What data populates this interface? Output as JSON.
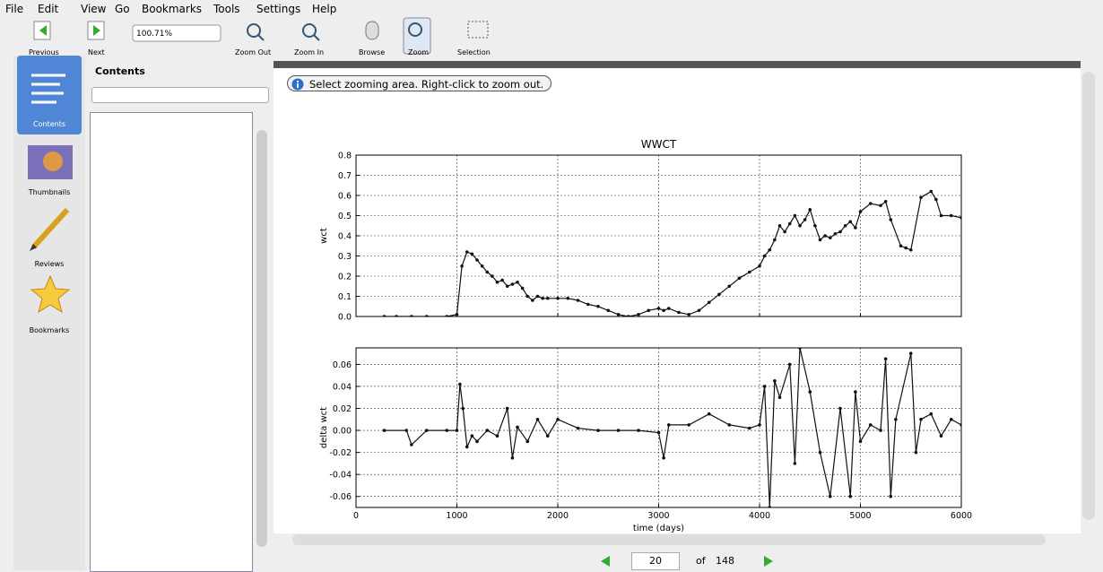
{
  "menu": [
    "File",
    "Edit",
    "View",
    "Go",
    "Bookmarks",
    "Tools",
    "Settings",
    "Help"
  ],
  "toolbar": {
    "previous": "Previous",
    "next": "Next",
    "zoom_value": "100.71%",
    "zoom_out": "Zoom Out",
    "zoom_in": "Zoom In",
    "browse": "Browse",
    "zoom": "Zoom",
    "selection": "Selection"
  },
  "sidebar": [
    "Contents",
    "Thumbnails",
    "Reviews",
    "Bookmarks"
  ],
  "panel_title": "Contents",
  "notice": "Select zooming area. Right-click to zoom out.",
  "page": {
    "current": 20,
    "of_label": "of",
    "total": 148
  },
  "chart_data": [
    {
      "type": "line",
      "title": "WWCT",
      "ylabel": "wct",
      "color": "#111111",
      "grid": true,
      "x": [
        280,
        400,
        550,
        700,
        900,
        1000,
        1050,
        1100,
        1150,
        1200,
        1250,
        1300,
        1350,
        1400,
        1450,
        1500,
        1550,
        1600,
        1650,
        1700,
        1750,
        1800,
        1850,
        1900,
        2000,
        2100,
        2200,
        2300,
        2400,
        2500,
        2600,
        2700,
        2800,
        2900,
        3000,
        3050,
        3100,
        3200,
        3300,
        3400,
        3500,
        3600,
        3700,
        3800,
        3900,
        4000,
        4050,
        4100,
        4150,
        4200,
        4250,
        4300,
        4350,
        4400,
        4450,
        4500,
        4550,
        4600,
        4650,
        4700,
        4750,
        4800,
        4850,
        4900,
        4950,
        5000,
        5100,
        5200,
        5250,
        5300,
        5400,
        5450,
        5500,
        5600,
        5700,
        5750,
        5800,
        5900,
        6000
      ],
      "values": [
        0,
        0,
        0,
        0,
        0,
        0.01,
        0.25,
        0.32,
        0.31,
        0.28,
        0.25,
        0.22,
        0.2,
        0.17,
        0.18,
        0.15,
        0.16,
        0.17,
        0.14,
        0.1,
        0.08,
        0.1,
        0.09,
        0.09,
        0.09,
        0.09,
        0.08,
        0.06,
        0.05,
        0.03,
        0.01,
        0,
        0.01,
        0.03,
        0.04,
        0.03,
        0.04,
        0.02,
        0.01,
        0.03,
        0.07,
        0.11,
        0.15,
        0.19,
        0.22,
        0.25,
        0.3,
        0.33,
        0.38,
        0.45,
        0.42,
        0.46,
        0.5,
        0.45,
        0.48,
        0.53,
        0.45,
        0.38,
        0.4,
        0.39,
        0.41,
        0.42,
        0.45,
        0.47,
        0.44,
        0.52,
        0.56,
        0.55,
        0.57,
        0.48,
        0.35,
        0.34,
        0.33,
        0.59,
        0.62,
        0.58,
        0.5,
        0.5,
        0.49
      ],
      "xlim": [
        0,
        6000
      ],
      "xticks": [
        0,
        1000,
        2000,
        3000,
        4000,
        5000,
        6000
      ],
      "ylim": [
        0,
        0.8
      ],
      "yticks": [
        {
          "value": 0,
          "label": "0.0"
        },
        0.1,
        0.2,
        0.3,
        0.4,
        0.5,
        0.6,
        0.7,
        0.8
      ]
    },
    {
      "type": "line",
      "ylabel": "delta wct",
      "xlabel": "time (days)",
      "color": "#111111",
      "grid": true,
      "x": [
        280,
        500,
        550,
        700,
        900,
        1000,
        1030,
        1060,
        1100,
        1150,
        1200,
        1300,
        1400,
        1500,
        1550,
        1600,
        1700,
        1800,
        1900,
        2000,
        2200,
        2400,
        2600,
        2800,
        3000,
        3050,
        3100,
        3300,
        3500,
        3700,
        3900,
        4000,
        4050,
        4100,
        4150,
        4200,
        4300,
        4350,
        4400,
        4500,
        4600,
        4700,
        4800,
        4900,
        4950,
        5000,
        5100,
        5200,
        5250,
        5300,
        5350,
        5500,
        5550,
        5600,
        5700,
        5800,
        5900,
        6000
      ],
      "values": [
        0,
        0,
        -0.013,
        0,
        0,
        0,
        0.042,
        0.02,
        -0.015,
        -0.005,
        -0.01,
        0,
        -0.005,
        0.02,
        -0.025,
        0.003,
        -0.01,
        0.01,
        -0.005,
        0.01,
        0.002,
        0,
        0,
        0,
        -0.002,
        -0.025,
        0.005,
        0.005,
        0.015,
        0.005,
        0.002,
        0.005,
        0.04,
        -0.07,
        0.045,
        0.03,
        0.06,
        -0.03,
        0.075,
        0.035,
        -0.02,
        -0.06,
        0.02,
        -0.06,
        0.035,
        -0.01,
        0.005,
        0,
        0.065,
        -0.06,
        0.01,
        0.07,
        -0.02,
        0.01,
        0.015,
        -0.005,
        0.01,
        0.005
      ],
      "xlim": [
        0,
        6000
      ],
      "xticks": [
        0,
        1000,
        2000,
        3000,
        4000,
        5000,
        6000
      ],
      "ylim": [
        -0.07,
        0.075
      ],
      "yticks": [
        -0.06,
        -0.04,
        -0.02,
        {
          "value": 0,
          "label": "0.00"
        },
        0.02,
        0.04,
        0.06
      ]
    }
  ]
}
